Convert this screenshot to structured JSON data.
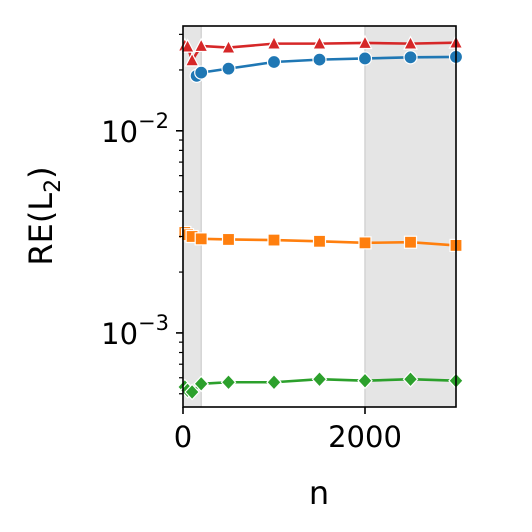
{
  "chart_data": {
    "type": "line",
    "xlabel": "n",
    "ylabel": "RE(L",
    "ylabel_sub": "2",
    "ylabel_close": ")",
    "yscale": "log",
    "xlim": [
      0,
      3000
    ],
    "ylim": [
      0.00043,
      0.033
    ],
    "x_ticks": [
      {
        "value": 0,
        "label": "0"
      },
      {
        "value": 2000,
        "label": "2000"
      }
    ],
    "y_ticks": [
      {
        "value": 0.001,
        "base": "10",
        "exp": "−3"
      },
      {
        "value": 0.01,
        "base": "10",
        "exp": "−2"
      }
    ],
    "shaded_regions": [
      [
        0,
        200
      ],
      [
        2000,
        3000
      ]
    ],
    "shade_color": "#e5e5e5",
    "series": [
      {
        "color": "#d62728",
        "marker": "triangle",
        "points": [
          [
            20,
            0.0264
          ],
          [
            50,
            0.0261
          ],
          [
            100,
            0.0223
          ],
          [
            200,
            0.0263
          ],
          [
            500,
            0.0258
          ],
          [
            1000,
            0.027
          ],
          [
            1500,
            0.027
          ],
          [
            2000,
            0.0272
          ],
          [
            2500,
            0.027
          ],
          [
            3000,
            0.0273
          ]
        ]
      },
      {
        "color": "#1f77b4",
        "marker": "circle",
        "points": [
          [
            150,
            0.0187
          ],
          [
            200,
            0.0194
          ],
          [
            500,
            0.0203
          ],
          [
            1000,
            0.0219
          ],
          [
            1500,
            0.0225
          ],
          [
            2000,
            0.0228
          ],
          [
            2500,
            0.0231
          ],
          [
            3000,
            0.0232
          ]
        ]
      },
      {
        "color": "#ff7f0e",
        "marker": "square",
        "points": [
          [
            20,
            0.00314
          ],
          [
            50,
            0.00306
          ],
          [
            100,
            0.003
          ],
          [
            200,
            0.00292
          ],
          [
            500,
            0.0029
          ],
          [
            1000,
            0.00288
          ],
          [
            1500,
            0.00284
          ],
          [
            2000,
            0.00279
          ],
          [
            2500,
            0.00281
          ],
          [
            3000,
            0.00271
          ]
        ]
      },
      {
        "color": "#2ca02c",
        "marker": "diamond",
        "points": [
          [
            20,
            0.00054
          ],
          [
            50,
            0.00052
          ],
          [
            100,
            0.00051
          ],
          [
            200,
            0.00056
          ],
          [
            500,
            0.00057
          ],
          [
            1000,
            0.00057
          ],
          [
            1500,
            0.00059
          ],
          [
            2000,
            0.00058
          ],
          [
            2500,
            0.00059
          ],
          [
            3000,
            0.00058
          ]
        ]
      }
    ]
  }
}
